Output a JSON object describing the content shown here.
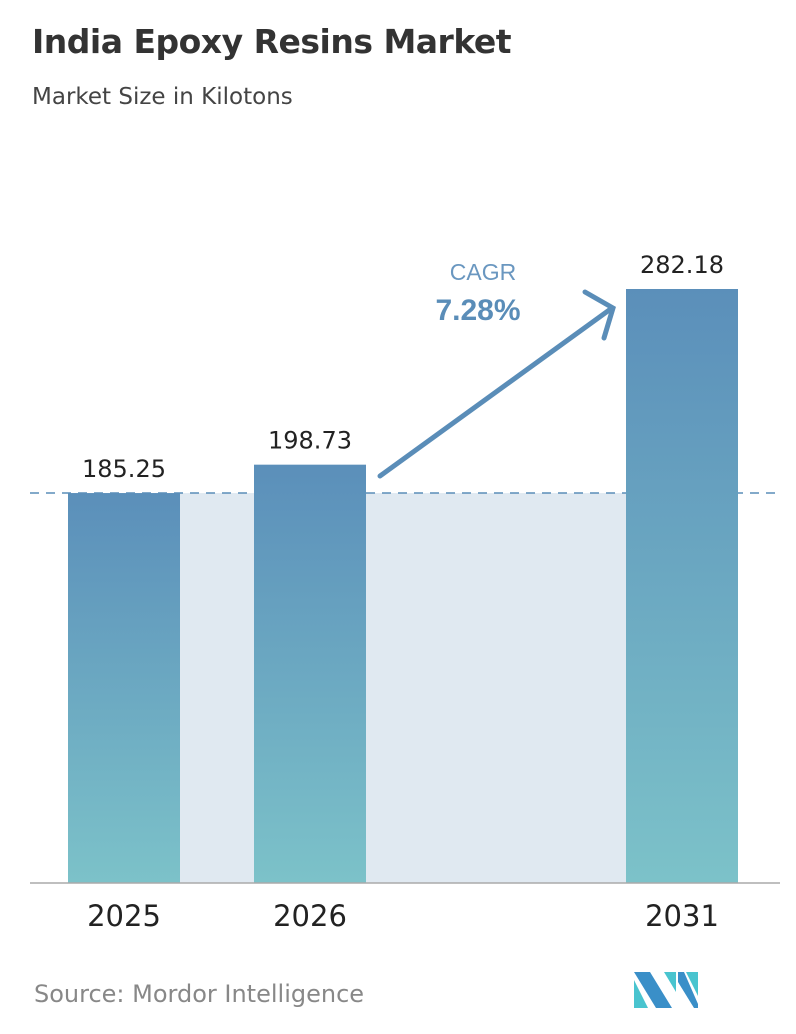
{
  "title": "India Epoxy Resins Market",
  "subtitle": "Market Size in Kilotons",
  "source": "Source:  Mordor Intelligence",
  "logo_text": "Mordor Intelligence",
  "colors": {
    "bar_top": "#5b8fba",
    "bar_bottom": "#7cc2c9",
    "shade": "#e0e9f1",
    "accent": "#5a8db8"
  },
  "chart_data": {
    "type": "bar",
    "title": "India Epoxy Resins Market",
    "ylabel": "Market Size in Kilotons",
    "categories": [
      "2025",
      "2026",
      "2031"
    ],
    "values": [
      185.25,
      198.73,
      282.18
    ],
    "value_labels": [
      "185.25",
      "198.73",
      "282.18"
    ],
    "ylim": [
      0,
      282.18
    ],
    "grid": false,
    "annotation": {
      "label": "CAGR",
      "value": "7.28%"
    }
  }
}
